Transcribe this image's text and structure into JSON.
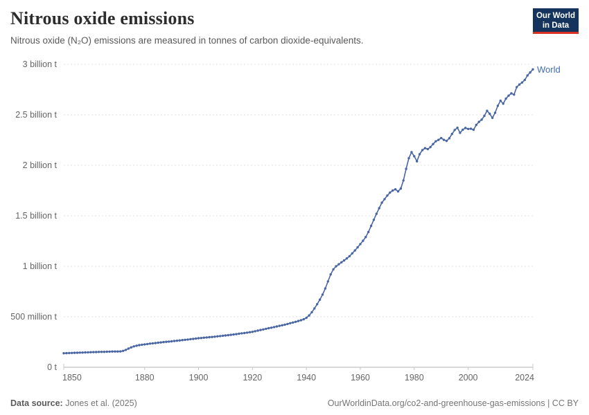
{
  "header": {
    "title": "Nitrous oxide emissions",
    "subtitle": "Nitrous oxide (N₂O) emissions are measured in tonnes of carbon dioxide-equivalents."
  },
  "logo": {
    "line1": "Our World",
    "line2": "in Data",
    "bg_color": "#14345d",
    "accent_color": "#dc3224"
  },
  "footer": {
    "source_label": "Data source:",
    "source_value": " Jones et al. (2025)",
    "credit": "OurWorldinData.org/co2-and-greenhouse-gas-emissions | CC BY"
  },
  "chart_data": {
    "type": "line",
    "title": "Nitrous oxide emissions",
    "xlabel": "",
    "ylabel": "tonnes of carbon dioxide-equivalents",
    "xlim": [
      1850,
      2024
    ],
    "ylim_billion_t": [
      0,
      3
    ],
    "grid": "horizontal-dashed",
    "legend": "line-end-label",
    "x_ticks": [
      1850,
      1880,
      1900,
      1920,
      1940,
      1960,
      1980,
      2000,
      2024
    ],
    "y_ticks": [
      {
        "v": 0,
        "label": "0 t"
      },
      {
        "v": 0.5,
        "label": "500 million t"
      },
      {
        "v": 1,
        "label": "1 billion t"
      },
      {
        "v": 1.5,
        "label": "1.5 billion t"
      },
      {
        "v": 2,
        "label": "2 billion t"
      },
      {
        "v": 2.5,
        "label": "2.5 billion t"
      },
      {
        "v": 3,
        "label": "3 billion t"
      }
    ],
    "series": [
      {
        "name": "World",
        "color": "#4a66a2",
        "label_color": "#3f6cb5",
        "start_year": 1850,
        "values_billion_t": [
          0.139,
          0.14,
          0.141,
          0.142,
          0.143,
          0.144,
          0.145,
          0.146,
          0.147,
          0.148,
          0.149,
          0.15,
          0.151,
          0.152,
          0.153,
          0.153,
          0.154,
          0.155,
          0.156,
          0.156,
          0.156,
          0.157,
          0.162,
          0.172,
          0.185,
          0.197,
          0.207,
          0.214,
          0.219,
          0.223,
          0.227,
          0.23,
          0.234,
          0.237,
          0.24,
          0.243,
          0.246,
          0.249,
          0.252,
          0.254,
          0.257,
          0.26,
          0.263,
          0.266,
          0.269,
          0.272,
          0.275,
          0.278,
          0.281,
          0.284,
          0.288,
          0.29,
          0.293,
          0.295,
          0.298,
          0.3,
          0.303,
          0.306,
          0.309,
          0.312,
          0.315,
          0.318,
          0.321,
          0.325,
          0.328,
          0.332,
          0.336,
          0.339,
          0.343,
          0.347,
          0.351,
          0.357,
          0.363,
          0.369,
          0.375,
          0.381,
          0.387,
          0.392,
          0.398,
          0.404,
          0.41,
          0.416,
          0.422,
          0.429,
          0.436,
          0.443,
          0.45,
          0.458,
          0.466,
          0.475,
          0.49,
          0.513,
          0.545,
          0.583,
          0.625,
          0.67,
          0.72,
          0.78,
          0.85,
          0.92,
          0.97,
          1.0,
          1.02,
          1.04,
          1.058,
          1.078,
          1.1,
          1.128,
          1.157,
          1.188,
          1.22,
          1.253,
          1.29,
          1.34,
          1.4,
          1.46,
          1.52,
          1.575,
          1.63,
          1.665,
          1.7,
          1.73,
          1.75,
          1.762,
          1.742,
          1.77,
          1.85,
          1.965,
          2.07,
          2.13,
          2.09,
          2.04,
          2.11,
          2.15,
          2.17,
          2.16,
          2.18,
          2.21,
          2.238,
          2.252,
          2.27,
          2.252,
          2.242,
          2.268,
          2.31,
          2.35,
          2.372,
          2.322,
          2.352,
          2.37,
          2.36,
          2.362,
          2.352,
          2.4,
          2.43,
          2.452,
          2.49,
          2.54,
          2.51,
          2.47,
          2.52,
          2.59,
          2.64,
          2.61,
          2.66,
          2.69,
          2.712,
          2.7,
          2.775,
          2.8,
          2.82,
          2.845,
          2.89,
          2.92,
          2.95
        ]
      }
    ],
    "style": {
      "gridline_color": "#e2e2e2",
      "axis_color": "#b3b3b3",
      "tick_color": "#c8c8c8",
      "tick_label_color": "#646464"
    }
  }
}
